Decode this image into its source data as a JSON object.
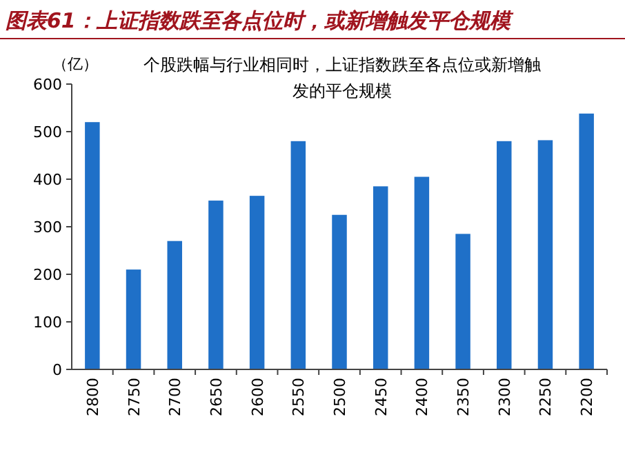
{
  "chart_data": {
    "type": "bar",
    "title": "图表61：上证指数跌至各点位时，或新增触发平仓规模",
    "subtitle": "个股跌幅与行业相同时，上证指数跌至各点位或新增触发的平仓规模",
    "ylabel": "（亿）",
    "categories": [
      "2800",
      "2750",
      "2700",
      "2650",
      "2600",
      "2550",
      "2500",
      "2450",
      "2400",
      "2350",
      "2300",
      "2250",
      "2200"
    ],
    "values": [
      520,
      210,
      270,
      355,
      365,
      480,
      325,
      385,
      405,
      285,
      480,
      482,
      538
    ],
    "color": "#1f70c8",
    "ylim": [
      0,
      600
    ],
    "yticks": [
      0,
      100,
      200,
      300,
      400,
      500,
      600
    ],
    "grid": false
  }
}
